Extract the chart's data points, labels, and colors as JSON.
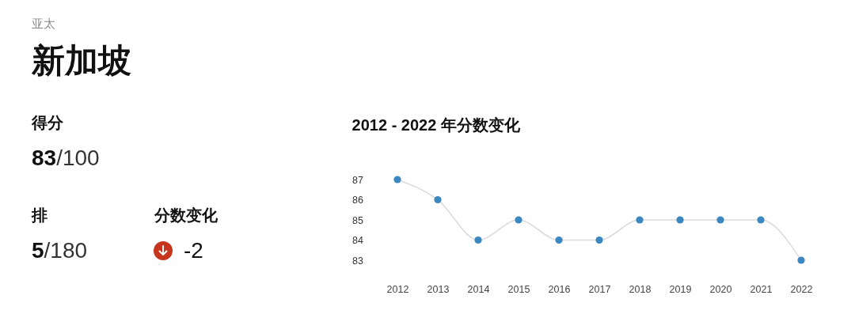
{
  "chart_data": [
    {
      "type": "other",
      "subtitle": "亚太",
      "title": "新加坡",
      "annotations": [
        "得分",
        "83/100",
        "排",
        "5/180",
        "分数变化",
        "-2"
      ]
    },
    {
      "type": "line",
      "title": "2012 - 2022 年分数变化",
      "categories": [
        "2012",
        "2013",
        "2014",
        "2015",
        "2016",
        "2017",
        "2018",
        "2019",
        "2020",
        "2021",
        "2022"
      ],
      "series": [
        {
          "color": "#3a87c1",
          "values": [
            87,
            86,
            84,
            85,
            84,
            84,
            85,
            85,
            85,
            85,
            83
          ]
        }
      ],
      "ylim": [
        83,
        87
      ],
      "yticks": [
        83,
        84,
        85,
        86,
        87
      ],
      "marker": "circle"
    }
  ]
}
